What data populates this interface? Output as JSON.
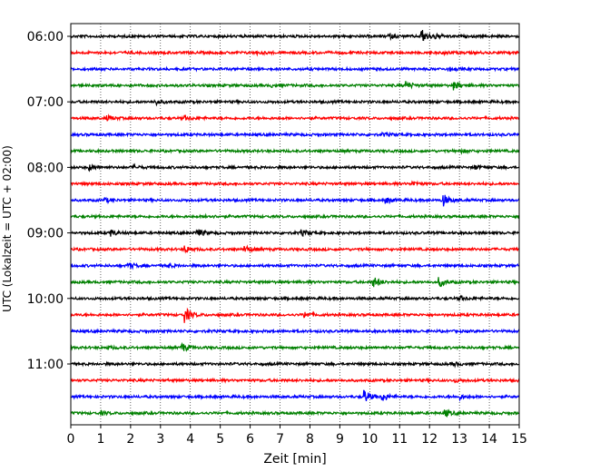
{
  "chart_data": {
    "type": "line",
    "title": "",
    "xlabel": "Zeit  [min]",
    "ylabel": "UTC (Lokalzeit = UTC + 02:00)",
    "xlim": [
      0,
      15
    ],
    "x_ticks": [
      "0",
      "1",
      "2",
      "3",
      "4",
      "5",
      "6",
      "7",
      "8",
      "9",
      "10",
      "11",
      "12",
      "13",
      "14",
      "15"
    ],
    "y_ticks": [
      "06:00",
      "07:00",
      "08:00",
      "09:00",
      "10:00",
      "11:00"
    ],
    "row_interval_min": 15,
    "start_time": "06:00",
    "grid": {
      "vertical_dotted": true
    },
    "colors": [
      "#000000",
      "#ff0000",
      "#0000ff",
      "#008000"
    ],
    "series": [
      {
        "time": "06:00",
        "color": "#000000",
        "events": [
          {
            "t": 11.7,
            "amp": 1.0
          },
          {
            "t": 10.6,
            "amp": 0.3
          },
          {
            "t": 12.1,
            "amp": 0.35
          }
        ]
      },
      {
        "time": "06:15",
        "color": "#ff0000",
        "events": [
          {
            "t": 6.2,
            "amp": 0.15
          },
          {
            "t": 12.5,
            "amp": 0.15
          }
        ]
      },
      {
        "time": "06:30",
        "color": "#0000ff",
        "events": [
          {
            "t": 12.6,
            "amp": 0.2
          }
        ]
      },
      {
        "time": "06:45",
        "color": "#008000",
        "events": [
          {
            "t": 11.2,
            "amp": 0.5
          },
          {
            "t": 12.8,
            "amp": 0.5
          },
          {
            "t": 6.7,
            "amp": 0.15
          }
        ]
      },
      {
        "time": "07:00",
        "color": "#000000",
        "events": [
          {
            "t": 2.8,
            "amp": 0.35
          }
        ]
      },
      {
        "time": "07:15",
        "color": "#ff0000",
        "events": [
          {
            "t": 1.2,
            "amp": 0.3
          },
          {
            "t": 3.8,
            "amp": 0.3
          }
        ]
      },
      {
        "time": "07:30",
        "color": "#0000ff",
        "events": [
          {
            "t": 10.4,
            "amp": 0.2
          }
        ]
      },
      {
        "time": "07:45",
        "color": "#008000",
        "events": [
          {
            "t": 13.0,
            "amp": 0.25
          }
        ]
      },
      {
        "time": "08:00",
        "color": "#000000",
        "events": [
          {
            "t": 0.6,
            "amp": 0.35
          },
          {
            "t": 2.1,
            "amp": 0.2
          },
          {
            "t": 13.5,
            "amp": 0.3
          }
        ]
      },
      {
        "time": "08:15",
        "color": "#ff0000",
        "events": [
          {
            "t": 11.4,
            "amp": 0.3
          }
        ]
      },
      {
        "time": "08:30",
        "color": "#0000ff",
        "events": [
          {
            "t": 12.4,
            "amp": 1.0
          },
          {
            "t": 10.5,
            "amp": 0.45
          },
          {
            "t": 1.1,
            "amp": 0.3
          }
        ]
      },
      {
        "time": "08:45",
        "color": "#008000",
        "events": [
          {
            "t": 4.5,
            "amp": 0.2
          }
        ]
      },
      {
        "time": "09:00",
        "color": "#000000",
        "events": [
          {
            "t": 1.3,
            "amp": 0.45
          },
          {
            "t": 4.2,
            "amp": 0.55
          },
          {
            "t": 7.7,
            "amp": 0.35
          }
        ]
      },
      {
        "time": "09:15",
        "color": "#ff0000",
        "events": [
          {
            "t": 3.8,
            "amp": 0.45
          },
          {
            "t": 5.8,
            "amp": 0.55
          }
        ]
      },
      {
        "time": "09:30",
        "color": "#0000ff",
        "events": [
          {
            "t": 1.9,
            "amp": 0.45
          },
          {
            "t": 3.2,
            "amp": 0.25
          }
        ]
      },
      {
        "time": "09:45",
        "color": "#008000",
        "events": [
          {
            "t": 10.1,
            "amp": 0.7
          },
          {
            "t": 12.3,
            "amp": 0.65
          }
        ]
      },
      {
        "time": "10:00",
        "color": "#000000",
        "events": [
          {
            "t": 13.0,
            "amp": 0.3
          }
        ]
      },
      {
        "time": "10:15",
        "color": "#ff0000",
        "events": [
          {
            "t": 3.8,
            "amp": 1.0
          },
          {
            "t": 7.8,
            "amp": 0.4
          }
        ]
      },
      {
        "time": "10:30",
        "color": "#0000ff",
        "events": []
      },
      {
        "time": "10:45",
        "color": "#008000",
        "events": [
          {
            "t": 3.7,
            "amp": 0.6
          },
          {
            "t": 1.2,
            "amp": 0.2
          }
        ]
      },
      {
        "time": "11:00",
        "color": "#000000",
        "events": [
          {
            "t": 12.8,
            "amp": 0.25
          }
        ]
      },
      {
        "time": "11:15",
        "color": "#ff0000",
        "events": [
          {
            "t": 12.8,
            "amp": 0.2
          }
        ]
      },
      {
        "time": "11:30",
        "color": "#0000ff",
        "events": [
          {
            "t": 9.8,
            "amp": 0.9
          },
          {
            "t": 10.4,
            "amp": 0.6
          },
          {
            "t": 13.0,
            "amp": 0.3
          }
        ]
      },
      {
        "time": "11:45",
        "color": "#008000",
        "events": [
          {
            "t": 12.5,
            "amp": 0.5
          },
          {
            "t": 1.0,
            "amp": 0.2
          }
        ]
      }
    ]
  }
}
